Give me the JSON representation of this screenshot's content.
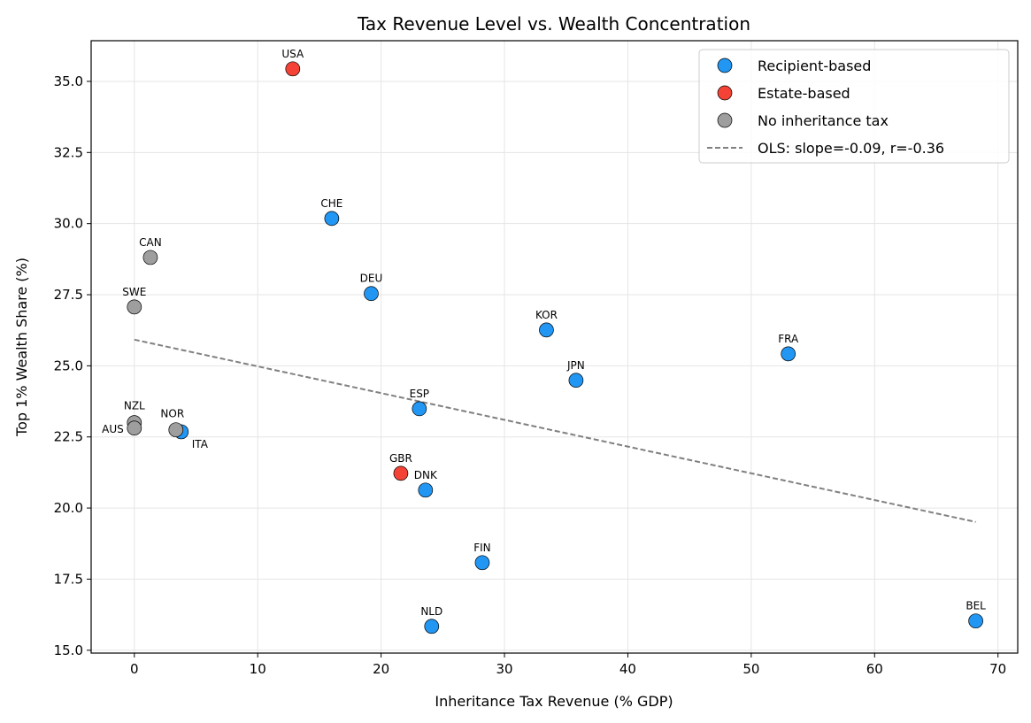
{
  "chart_data": {
    "type": "scatter",
    "title": "Tax Revenue Level vs. Wealth Concentration",
    "xlabel": "Inheritance Tax Revenue (% GDP)",
    "ylabel": "Top 1% Wealth Share (%)",
    "xlim": [
      -3.5,
      71.6
    ],
    "ylim": [
      14.9,
      36.43
    ],
    "xticks": [
      "0",
      "10",
      "20",
      "30",
      "40",
      "50",
      "60",
      "70"
    ],
    "yticks": [
      "15.0",
      "17.5",
      "20.0",
      "22.5",
      "25.0",
      "27.5",
      "30.0",
      "32.5",
      "35.0"
    ],
    "grid": true,
    "legend_position": "top-right",
    "colors": {
      "Recipient-based": "#2196F3",
      "Estate-based": "#F44336",
      "No inheritance tax": "#9E9E9E",
      "ols": "#808080"
    },
    "series": [
      {
        "name": "Recipient-based",
        "points": [
          {
            "label": "CHE",
            "x": 16.0,
            "y": 30.18
          },
          {
            "label": "DEU",
            "x": 19.2,
            "y": 27.54
          },
          {
            "label": "KOR",
            "x": 33.4,
            "y": 26.26
          },
          {
            "label": "FRA",
            "x": 53.0,
            "y": 25.42
          },
          {
            "label": "JPN",
            "x": 35.8,
            "y": 24.49
          },
          {
            "label": "ESP",
            "x": 23.1,
            "y": 23.49
          },
          {
            "label": "ITA",
            "x": 3.8,
            "y": 22.68
          },
          {
            "label": "DNK",
            "x": 23.6,
            "y": 20.63
          },
          {
            "label": "FIN",
            "x": 28.2,
            "y": 18.08
          },
          {
            "label": "NLD",
            "x": 24.1,
            "y": 15.84
          },
          {
            "label": "BEL",
            "x": 68.2,
            "y": 16.03
          }
        ]
      },
      {
        "name": "Estate-based",
        "points": [
          {
            "label": "USA",
            "x": 12.84,
            "y": 35.44
          },
          {
            "label": "GBR",
            "x": 21.6,
            "y": 21.22
          }
        ]
      },
      {
        "name": "No inheritance tax",
        "points": [
          {
            "label": "CAN",
            "x": 1.3,
            "y": 28.81
          },
          {
            "label": "SWE",
            "x": 0.0,
            "y": 27.07
          },
          {
            "label": "NZL",
            "x": 0.0,
            "y": 23.0
          },
          {
            "label": "AUS",
            "x": 0.0,
            "y": 22.81
          },
          {
            "label": "NOR",
            "x": 3.37,
            "y": 22.75
          }
        ]
      }
    ],
    "ols": {
      "name": "OLS: slope=-0.09, r=-0.36",
      "x": [
        0,
        68.2
      ],
      "y": [
        25.92,
        19.51
      ]
    }
  }
}
